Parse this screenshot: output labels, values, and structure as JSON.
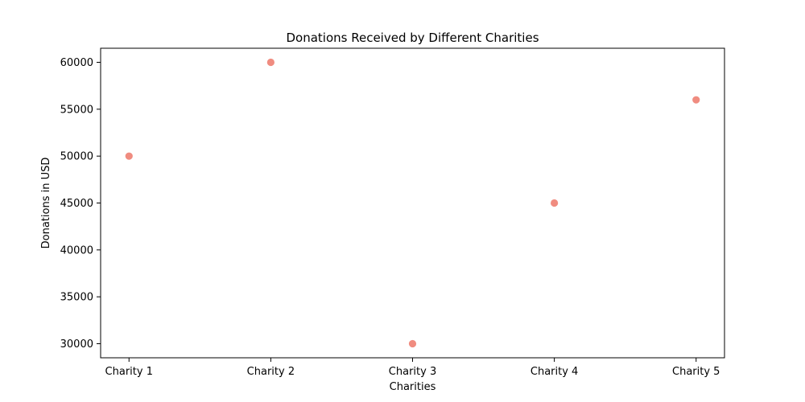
{
  "chart_data": {
    "type": "scatter",
    "title": "Donations Received by Different Charities",
    "xlabel": "Charities",
    "ylabel": "Donations in USD",
    "categories": [
      "Charity 1",
      "Charity 2",
      "Charity 3",
      "Charity 4",
      "Charity 5"
    ],
    "values": [
      50000,
      60000,
      30000,
      45000,
      56000
    ],
    "yticks": [
      30000,
      35000,
      40000,
      45000,
      50000,
      55000,
      60000
    ],
    "ylim": [
      28500,
      61500
    ],
    "grid": false,
    "point_color": "#F08C80"
  }
}
